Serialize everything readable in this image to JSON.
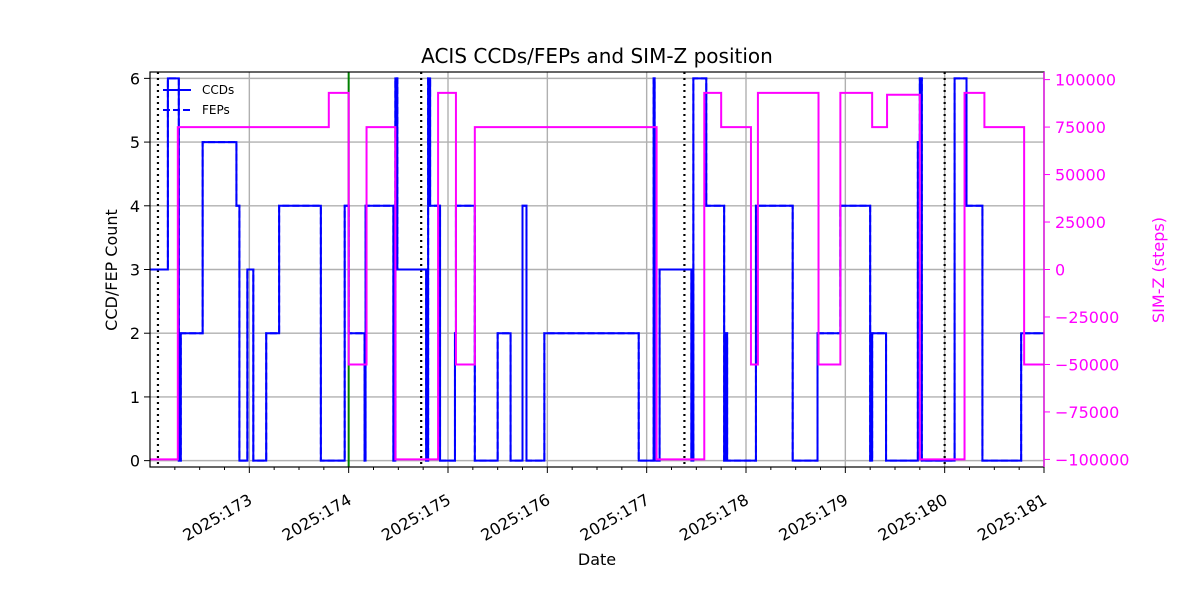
{
  "chart_data": {
    "type": "line",
    "title": "ACIS CCDs/FEPs and SIM-Z position",
    "xlabel": "Date",
    "ylabel": "CCD/FEP Count",
    "y2label": "SIM-Z (steps)",
    "xlim": [
      172.0,
      181.0
    ],
    "ylim": [
      -0.1,
      6.1
    ],
    "y2lim": [
      -104000,
      104000
    ],
    "x_ticks": [
      173,
      174,
      175,
      176,
      177,
      178,
      179,
      180,
      181
    ],
    "x_tick_labels": [
      "2025:173",
      "2025:174",
      "2025:175",
      "2025:176",
      "2025:177",
      "2025:178",
      "2025:179",
      "2025:180",
      "2025:181"
    ],
    "y_ticks": [
      0,
      1,
      2,
      3,
      4,
      5,
      6
    ],
    "y_tick_labels": [
      "0",
      "1",
      "2",
      "3",
      "4",
      "5",
      "6"
    ],
    "y2_ticks": [
      -100000,
      -75000,
      -50000,
      -25000,
      0,
      25000,
      50000,
      75000,
      100000
    ],
    "y2_tick_labels": [
      "−100000",
      "−75000",
      "−50000",
      "−25000",
      "0",
      "25000",
      "50000",
      "75000",
      "100000"
    ],
    "grid": true,
    "legend": {
      "position": "top-left",
      "entries": [
        "CCDs",
        "FEPs"
      ]
    },
    "colors": {
      "ccd": "#0000ff",
      "fep": "#0000ff",
      "simz": "#ff00ff",
      "dotted": "#000000",
      "green": "#008000",
      "grid": "#b0b0b0",
      "y2axis": "#ff00ff"
    },
    "series": [
      {
        "name": "CCDs",
        "style": "solid",
        "x": [
          172.0,
          172.18,
          172.29,
          172.31,
          172.53,
          172.87,
          172.88,
          172.9,
          172.98,
          173.04,
          173.17,
          173.3,
          173.31,
          173.72,
          173.85,
          173.96,
          173.98,
          174.0,
          174.16,
          174.17,
          174.45,
          174.47,
          174.49,
          174.78,
          174.8,
          174.82,
          174.92,
          175.07,
          175.08,
          175.27,
          175.5,
          175.63,
          175.75,
          175.79,
          175.97,
          175.99,
          176.13,
          176.92,
          177.07,
          177.08,
          177.13,
          177.45,
          177.47,
          177.6,
          177.78,
          177.8,
          177.81,
          178.1,
          178.12,
          178.47,
          178.72,
          178.74,
          178.95,
          179.25,
          179.27,
          179.41,
          179.73,
          179.75,
          179.77,
          180.08,
          180.1,
          180.22,
          180.32,
          180.38,
          180.75,
          180.77
        ],
        "y": [
          3,
          6,
          0,
          2,
          5,
          4,
          4,
          0,
          3,
          0,
          2,
          4,
          4,
          0,
          0,
          4,
          4,
          2,
          0,
          4,
          0,
          6,
          3,
          0,
          6,
          4,
          0,
          2,
          4,
          0,
          2,
          0,
          4,
          0,
          2,
          2,
          2,
          0,
          6,
          0,
          3,
          0,
          6,
          4,
          0,
          2,
          0,
          4,
          4,
          0,
          2,
          2,
          4,
          0,
          2,
          0,
          5,
          6,
          0,
          0,
          6,
          4,
          4,
          0,
          0,
          2
        ]
      },
      {
        "name": "FEPs",
        "style": "dashed",
        "x": [
          172.0,
          172.18,
          172.29,
          172.31,
          172.53,
          172.87,
          172.88,
          172.9,
          172.98,
          173.04,
          173.17,
          173.3,
          173.31,
          173.72,
          173.85,
          173.96,
          173.98,
          174.0,
          174.16,
          174.17,
          174.45,
          174.47,
          174.49,
          174.78,
          174.8,
          174.82,
          174.92,
          175.07,
          175.08,
          175.27,
          175.5,
          175.63,
          175.75,
          175.79,
          175.97,
          175.99,
          176.13,
          176.92,
          177.07,
          177.08,
          177.13,
          177.45,
          177.47,
          177.6,
          177.78,
          177.8,
          177.81,
          178.1,
          178.12,
          178.47,
          178.72,
          178.74,
          178.95,
          179.25,
          179.27,
          179.41,
          179.73,
          179.75,
          179.77,
          180.08,
          180.1,
          180.22,
          180.32,
          180.38,
          180.75,
          180.77
        ],
        "y": [
          3,
          6,
          0,
          2,
          5,
          4,
          4,
          0,
          3,
          0,
          2,
          4,
          4,
          0,
          0,
          4,
          4,
          2,
          0,
          4,
          0,
          6,
          3,
          0,
          6,
          4,
          0,
          2,
          4,
          0,
          2,
          0,
          4,
          0,
          2,
          2,
          2,
          0,
          6,
          0,
          3,
          0,
          6,
          4,
          0,
          2,
          0,
          4,
          4,
          0,
          2,
          2,
          4,
          0,
          2,
          0,
          5,
          6,
          0,
          0,
          6,
          4,
          4,
          0,
          0,
          2
        ]
      },
      {
        "name": "SIM-Z",
        "style": "solid",
        "axis": "right",
        "x": [
          172.0,
          172.28,
          172.87,
          173.8,
          174.0,
          174.18,
          174.47,
          174.9,
          175.08,
          175.27,
          177.1,
          177.58,
          177.75,
          178.05,
          178.12,
          178.73,
          178.95,
          179.27,
          179.42,
          179.75,
          180.2,
          180.4,
          180.8
        ],
        "y": [
          -100000,
          75000,
          75000,
          93000,
          -50000,
          75000,
          -100000,
          93000,
          -50000,
          75000,
          -100000,
          93000,
          75000,
          -50000,
          93000,
          -50000,
          93000,
          75000,
          92000,
          -100000,
          93000,
          75000,
          -50000
        ]
      }
    ],
    "vlines_dotted": [
      172.08,
      174.73,
      177.38,
      180.0
    ],
    "vlines_green": [
      174.0
    ]
  }
}
